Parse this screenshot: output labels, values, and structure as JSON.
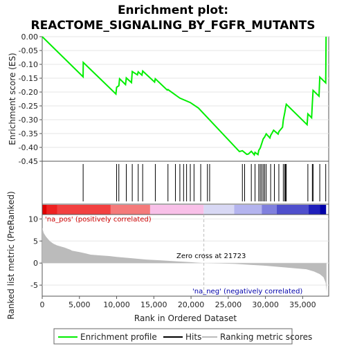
{
  "chart_data": {
    "type": "line",
    "title_line1": "Enrichment plot:",
    "title_line2": "REACTOME_SIGNALING_BY_FGFR_MUTANTS",
    "top_panel": {
      "ylabel": "Enrichment score (ES)",
      "ylim": [
        -0.45,
        0.0
      ],
      "yticks": [
        "0.00",
        "-0.05",
        "-0.10",
        "-0.15",
        "-0.20",
        "-0.25",
        "-0.30",
        "-0.35",
        "-0.40",
        "-0.45"
      ],
      "ytick_values": [
        0.0,
        -0.05,
        -0.1,
        -0.15,
        -0.2,
        -0.25,
        -0.3,
        -0.35,
        -0.4,
        -0.45
      ],
      "series_name": "Enrichment profile",
      "color": "#00ee00",
      "hits": [
        5500,
        10000,
        10300,
        11300,
        12100,
        12900,
        13500,
        15200,
        16900,
        17900,
        18500,
        19000,
        19400,
        19900,
        20400,
        21300,
        22200,
        22500,
        26900,
        27200,
        28100,
        28600,
        29100,
        29300,
        29500,
        29700,
        29900,
        30100,
        30700,
        31200,
        31800,
        32400,
        32600,
        32700,
        32800,
        35700,
        36300,
        36400,
        37300,
        38100
      ],
      "es_points": [
        [
          0,
          0.0
        ],
        [
          5500,
          -0.145
        ],
        [
          5510,
          -0.093
        ],
        [
          9900,
          -0.207
        ],
        [
          10000,
          -0.183
        ],
        [
          10300,
          -0.177
        ],
        [
          10400,
          -0.152
        ],
        [
          11200,
          -0.173
        ],
        [
          11300,
          -0.149
        ],
        [
          12000,
          -0.166
        ],
        [
          12100,
          -0.126
        ],
        [
          12800,
          -0.138
        ],
        [
          12900,
          -0.127
        ],
        [
          13400,
          -0.139
        ],
        [
          13500,
          -0.124
        ],
        [
          15100,
          -0.164
        ],
        [
          15200,
          -0.152
        ],
        [
          16800,
          -0.193
        ],
        [
          16900,
          -0.191
        ],
        [
          18500,
          -0.222
        ],
        [
          19900,
          -0.238
        ],
        [
          21000,
          -0.258
        ],
        [
          26500,
          -0.415
        ],
        [
          26900,
          -0.412
        ],
        [
          27500,
          -0.425
        ],
        [
          27700,
          -0.424
        ],
        [
          28100,
          -0.414
        ],
        [
          28500,
          -0.427
        ],
        [
          28600,
          -0.418
        ],
        [
          29000,
          -0.426
        ],
        [
          29100,
          -0.411
        ],
        [
          29300,
          -0.402
        ],
        [
          29500,
          -0.386
        ],
        [
          29700,
          -0.369
        ],
        [
          29900,
          -0.362
        ],
        [
          30100,
          -0.351
        ],
        [
          30600,
          -0.366
        ],
        [
          30700,
          -0.357
        ],
        [
          31100,
          -0.338
        ],
        [
          31700,
          -0.352
        ],
        [
          31800,
          -0.343
        ],
        [
          32300,
          -0.327
        ],
        [
          32400,
          -0.301
        ],
        [
          32600,
          -0.273
        ],
        [
          32700,
          -0.258
        ],
        [
          32800,
          -0.244
        ],
        [
          35600,
          -0.318
        ],
        [
          35700,
          -0.279
        ],
        [
          36200,
          -0.293
        ],
        [
          36300,
          -0.244
        ],
        [
          36400,
          -0.194
        ],
        [
          37200,
          -0.215
        ],
        [
          37300,
          -0.146
        ],
        [
          38100,
          -0.167
        ],
        [
          38150,
          0.0
        ]
      ]
    },
    "bottom_panel": {
      "ylabel": "Ranked list metric (PreRanked)",
      "ylim": [
        -7.5,
        11.0
      ],
      "yticks": [
        "10",
        "5",
        "0",
        "-5"
      ],
      "ytick_values": [
        10,
        5,
        0,
        -5
      ],
      "xlabel": "Rank in Ordered Dataset",
      "xlim": [
        0,
        38500
      ],
      "xticks": [
        "0",
        "5,000",
        "10,000",
        "15,000",
        "20,000",
        "25,000",
        "30,000",
        "35,000"
      ],
      "xtick_values": [
        0,
        5000,
        10000,
        15000,
        20000,
        25000,
        30000,
        35000
      ],
      "zero_cross": 21723,
      "zero_cross_label": "Zero cross at 21723",
      "pos_label": "'na_pos' (positively correlated)",
      "neg_label": "'na_neg' (negatively correlated)",
      "metric_points": [
        [
          0,
          8.0
        ],
        [
          200,
          6.8
        ],
        [
          500,
          6.0
        ],
        [
          1000,
          5.0
        ],
        [
          1500,
          4.4
        ],
        [
          2000,
          4.0
        ],
        [
          3000,
          3.5
        ],
        [
          3800,
          3.0
        ],
        [
          4000,
          2.8
        ],
        [
          5000,
          2.5
        ],
        [
          5800,
          2.2
        ],
        [
          6500,
          1.9
        ],
        [
          8000,
          1.7
        ],
        [
          9000,
          1.6
        ],
        [
          10000,
          1.4
        ],
        [
          12000,
          1.1
        ],
        [
          14000,
          0.8
        ],
        [
          16000,
          0.6
        ],
        [
          18000,
          0.4
        ],
        [
          20000,
          0.2
        ],
        [
          21723,
          0.0
        ],
        [
          24000,
          -0.1
        ],
        [
          26000,
          -0.2
        ],
        [
          28000,
          -0.4
        ],
        [
          30000,
          -0.6
        ],
        [
          32000,
          -0.9
        ],
        [
          34000,
          -1.2
        ],
        [
          35500,
          -1.4
        ],
        [
          36500,
          -1.9
        ],
        [
          37300,
          -2.5
        ],
        [
          37800,
          -3.2
        ],
        [
          38100,
          -4.5
        ],
        [
          38200,
          -6.5
        ]
      ],
      "color_bar_segments": [
        [
          0,
          600,
          "#e00000"
        ],
        [
          600,
          2000,
          "#ee2222"
        ],
        [
          2000,
          9200,
          "#f24040"
        ],
        [
          9200,
          14500,
          "#f47a7a"
        ],
        [
          14500,
          21700,
          "#f8c0e8"
        ],
        [
          21700,
          25800,
          "#d8d8f4"
        ],
        [
          25800,
          29500,
          "#b4b4ee"
        ],
        [
          29500,
          31500,
          "#8080dd"
        ],
        [
          31500,
          35800,
          "#4f4fcc"
        ],
        [
          35800,
          37300,
          "#2020bb"
        ],
        [
          37300,
          38150,
          "#0000a8"
        ]
      ]
    },
    "legend": {
      "items": [
        {
          "label": "Enrichment profile",
          "color": "#00ee00"
        },
        {
          "label": "Hits",
          "color": "#000000"
        },
        {
          "label": "Ranking metric scores",
          "color": "#bbbbbb"
        }
      ]
    }
  }
}
